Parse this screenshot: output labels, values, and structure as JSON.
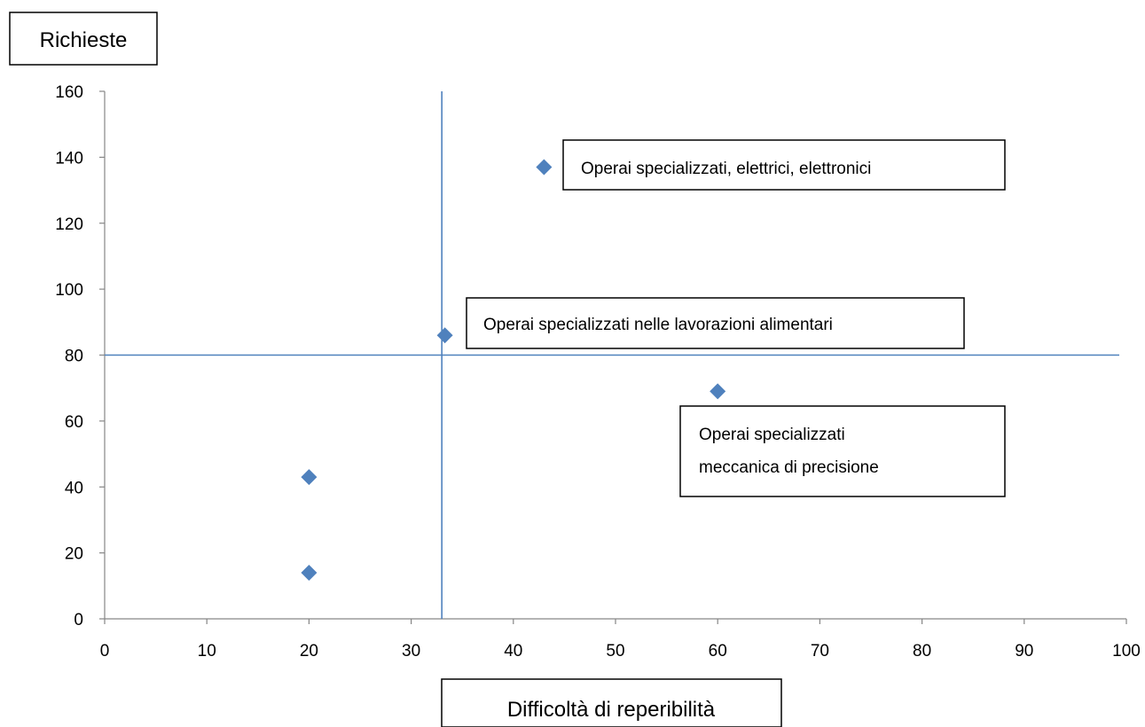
{
  "chart_data": {
    "type": "scatter",
    "title": "",
    "ylabel": "Richieste",
    "xlabel": "Difficoltà di reperibilità",
    "xlim": [
      0,
      100
    ],
    "ylim": [
      0,
      160
    ],
    "xticks": [
      0,
      10,
      20,
      30,
      40,
      50,
      60,
      70,
      80,
      90,
      100
    ],
    "yticks": [
      0,
      20,
      40,
      60,
      80,
      100,
      120,
      140,
      160
    ],
    "grid": false,
    "marker": "diamond",
    "series_color": "#4F81BD",
    "points": [
      {
        "x": 20,
        "y": 14
      },
      {
        "x": 20,
        "y": 43
      },
      {
        "x": 33.3,
        "y": 86
      },
      {
        "x": 43,
        "y": 137
      },
      {
        "x": 60,
        "y": 69
      }
    ],
    "reference_lines": {
      "vertical_x": 33,
      "horizontal_y": 80,
      "color": "#4F81BD"
    },
    "annotations": [
      {
        "lines": [
          "Operai specializzati, elettrici, elettronici"
        ]
      },
      {
        "lines": [
          "Operai specializzati nelle lavorazioni alimentari"
        ]
      },
      {
        "lines": [
          "Operai specializzati",
          "meccanica di precisione"
        ]
      }
    ]
  }
}
